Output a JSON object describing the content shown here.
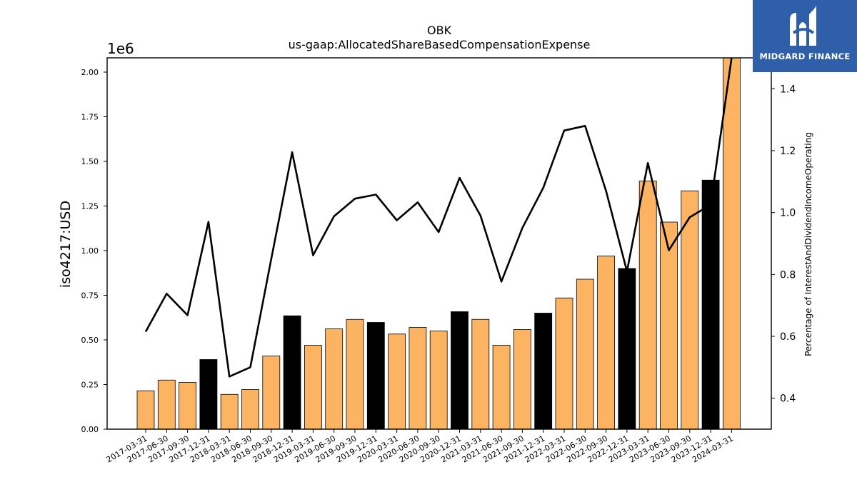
{
  "chart_data": {
    "type": "bar+line",
    "title": "OBK",
    "subtitle": "us-gaap:AllocatedShareBasedCompensationExpense",
    "ylabel": "iso4217:USD",
    "y_offset_label": "1e6",
    "y2label": "Percentage of InterestAndDividendIncomeOperating",
    "ylim": [
      0,
      2.08
    ],
    "y2lim": [
      0.3,
      1.5
    ],
    "yticks": [
      "0.00",
      "0.25",
      "0.50",
      "0.75",
      "1.00",
      "1.25",
      "1.50",
      "1.75",
      "2.00"
    ],
    "y2ticks": [
      "0.4",
      "0.6",
      "0.8",
      "1.0",
      "1.2",
      "1.4"
    ],
    "categories": [
      "2017-03-31",
      "2017-06-30",
      "2017-09-30",
      "2017-12-31",
      "2018-03-31",
      "2018-06-30",
      "2018-09-30",
      "2018-12-31",
      "2019-03-31",
      "2019-06-30",
      "2019-09-30",
      "2019-12-31",
      "2020-03-31",
      "2020-06-30",
      "2020-09-30",
      "2020-12-31",
      "2021-03-31",
      "2021-06-30",
      "2021-09-30",
      "2021-12-31",
      "2022-03-31",
      "2022-06-30",
      "2022-09-30",
      "2022-12-31",
      "2023-03-31",
      "2023-06-30",
      "2023-09-30",
      "2023-12-31",
      "2024-03-31"
    ],
    "bar_values": [
      0.215,
      0.275,
      0.262,
      0.39,
      0.195,
      0.222,
      0.41,
      0.635,
      0.47,
      0.562,
      0.615,
      0.598,
      0.533,
      0.57,
      0.55,
      0.658,
      0.615,
      0.47,
      0.558,
      0.65,
      0.735,
      0.84,
      0.97,
      0.9,
      1.39,
      1.16,
      1.335,
      1.395,
      2.08
    ],
    "bar_highlight": [
      false,
      false,
      false,
      true,
      false,
      false,
      false,
      true,
      false,
      false,
      false,
      true,
      false,
      false,
      false,
      true,
      false,
      false,
      false,
      true,
      false,
      false,
      false,
      true,
      false,
      false,
      false,
      true,
      false
    ],
    "line_values": [
      0.615,
      0.738,
      0.668,
      0.97,
      0.47,
      0.5,
      0.85,
      1.195,
      0.862,
      0.988,
      1.045,
      1.058,
      0.975,
      1.033,
      0.937,
      1.112,
      0.99,
      0.777,
      0.95,
      1.08,
      1.265,
      1.28,
      1.07,
      0.81,
      1.16,
      0.878,
      0.985,
      1.025,
      1.5
    ],
    "colors": {
      "bar": "#fdb462",
      "bar_highlight": "#000000",
      "line": "#000000"
    }
  },
  "logo": {
    "text": "MIDGARD FINANCE",
    "color": "#2f5fa8"
  }
}
